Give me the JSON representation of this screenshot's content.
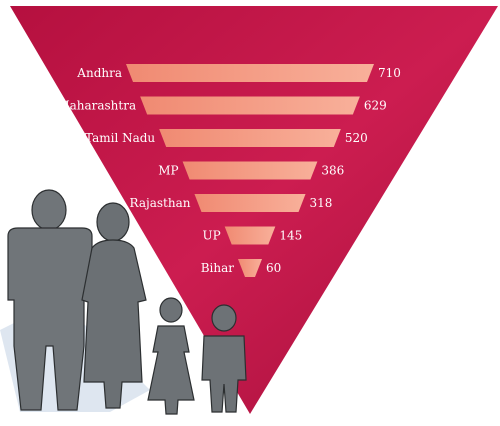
{
  "colors": {
    "triangle": "#c2164a",
    "triangle_dark": "#9c0e38",
    "bar_light": "#f6a58a",
    "bar_dark": "#f0826c",
    "figure": "#6f7478",
    "figure_dark": "#4e5357",
    "shadow": "#c7d4e4"
  },
  "chart_data": {
    "type": "bar",
    "orientation": "horizontal",
    "categories": [
      "Andhra",
      "Maharashtra",
      "Tamil Nadu",
      "MP",
      "Rajasthan",
      "UP",
      "Bihar"
    ],
    "values": [
      710,
      629,
      520,
      386,
      318,
      145,
      60
    ],
    "labels": [
      "710",
      "629",
      "520",
      "386",
      "318",
      "145",
      "60"
    ],
    "xlim": [
      0,
      710
    ],
    "grid": false,
    "legend": "none"
  }
}
